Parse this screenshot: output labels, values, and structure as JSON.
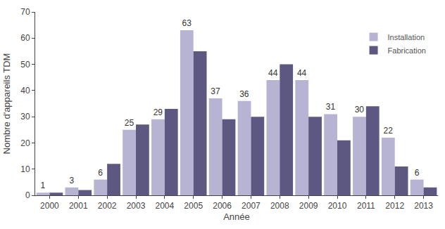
{
  "chart_data": {
    "type": "bar",
    "x_label": "Année",
    "y_label": "Nombre d'appareils TDM",
    "categories": [
      "2000",
      "2001",
      "2002",
      "2003",
      "2004",
      "2005",
      "2006",
      "2007",
      "2008",
      "2009",
      "2010",
      "2011",
      "2012",
      "2013"
    ],
    "series": [
      {
        "name": "Installation",
        "color": "#b7b3d3",
        "data_labels": true,
        "values": [
          1,
          3,
          6,
          25,
          29,
          63,
          37,
          36,
          44,
          44,
          31,
          30,
          22,
          6
        ]
      },
      {
        "name": "Fabrication",
        "color": "#5d5882",
        "data_labels": false,
        "values": [
          1,
          2,
          12,
          27,
          33,
          55,
          29,
          30,
          50,
          30,
          21,
          34,
          11,
          3
        ]
      }
    ],
    "ylim": [
      0,
      70
    ],
    "yticks": [
      0,
      10,
      20,
      30,
      40,
      50,
      60,
      70
    ],
    "grid": false,
    "legend": "top right"
  }
}
